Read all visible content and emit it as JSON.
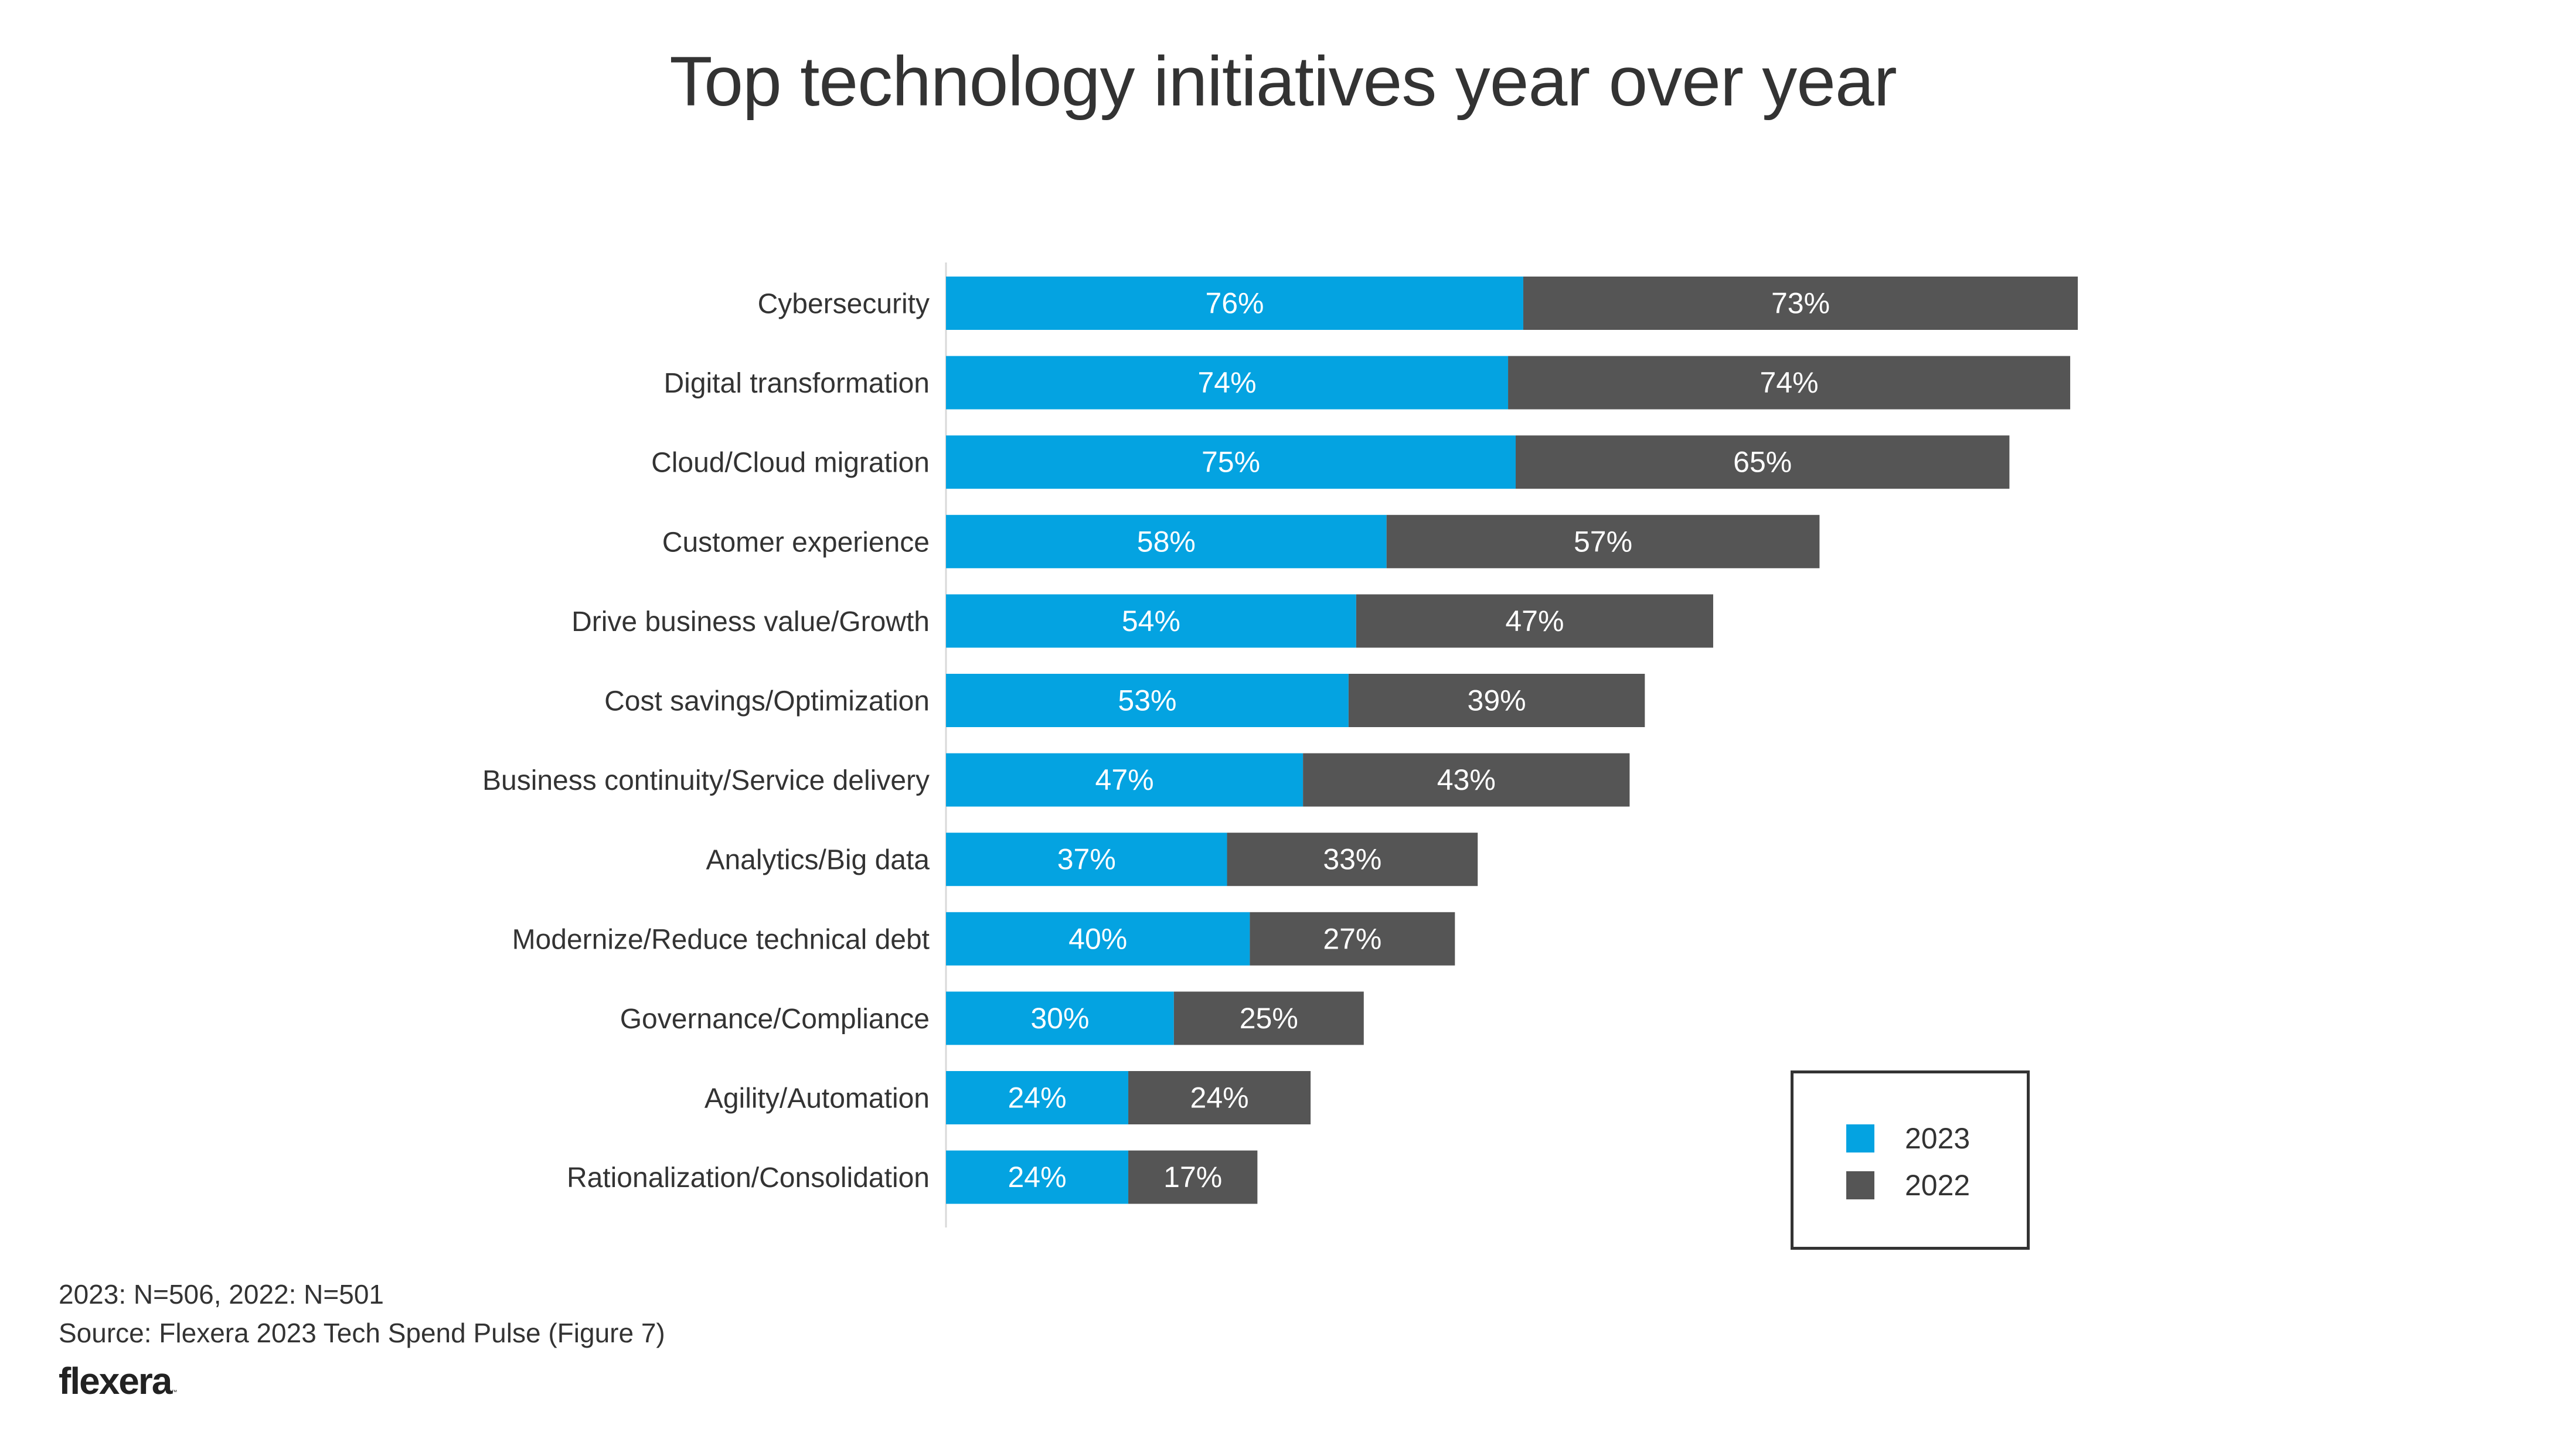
{
  "chart_data": {
    "type": "bar",
    "orientation": "horizontal",
    "stacked": true,
    "title": "Top technology initiatives year over year",
    "xlabel": "",
    "ylabel": "",
    "value_format": "percent",
    "grid": false,
    "categories": [
      "Cybersecurity",
      "Digital transformation",
      "Cloud/Cloud migration",
      "Customer experience",
      "Drive business value/Growth",
      "Cost savings/Optimization",
      "Business continuity/Service delivery",
      "Analytics/Big data",
      "Modernize/Reduce technical debt",
      "Governance/Compliance",
      "Agility/Automation",
      "Rationalization/Consolidation"
    ],
    "series": [
      {
        "name": "2023",
        "color": "#04A3E1",
        "values": [
          76,
          74,
          75,
          58,
          54,
          53,
          47,
          37,
          40,
          30,
          24,
          24
        ]
      },
      {
        "name": "2022",
        "color": "#555555",
        "values": [
          73,
          74,
          65,
          57,
          47,
          39,
          43,
          33,
          27,
          25,
          24,
          17
        ]
      }
    ],
    "data_labels": [
      [
        "76%",
        "74%",
        "75%",
        "58%",
        "54%",
        "53%",
        "47%",
        "37%",
        "40%",
        "30%",
        "24%",
        "24%"
      ],
      [
        "73%",
        "74%",
        "65%",
        "57%",
        "47%",
        "39%",
        "43%",
        "33%",
        "27%",
        "25%",
        "24%",
        "17%"
      ]
    ],
    "legend": {
      "position": "bottom-right",
      "entries": [
        "2023",
        "2022"
      ]
    }
  },
  "footer": {
    "note": "2023: N=506, 2022: N=501",
    "source": "Source: Flexera 2023 Tech Spend Pulse (Figure 7)",
    "logo_text": "flexera",
    "logo_tm": "™"
  },
  "colors": {
    "series_2023": "#04A3E1",
    "series_2022": "#555555",
    "text": "#333333",
    "axis": "#D9D9D9",
    "label_on_bar": "#FFFFFF"
  }
}
